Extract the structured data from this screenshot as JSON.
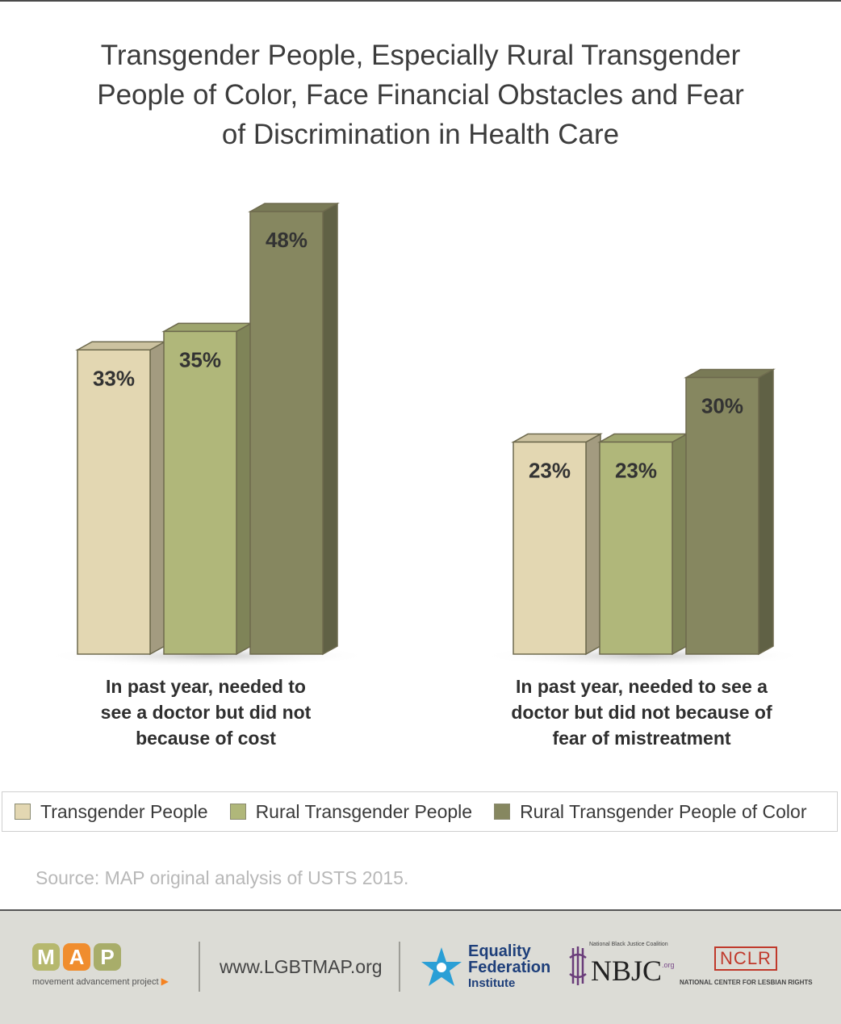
{
  "title": "Transgender People, Especially Rural Transgender People of Color, Face Financial Obstacles and Fear of Discrimination in Health Care",
  "title_lines": [
    "Transgender People, Especially Rural Transgender",
    "People of Color, Face Financial Obstacles and Fear",
    "of Discrimination in Health Care"
  ],
  "chart_data": {
    "type": "bar",
    "categories": [
      "In past year, needed to see a doctor but did not because of cost",
      "In past year, needed to see a doctor but did not because of fear of mistreatment"
    ],
    "category_lines": [
      [
        "In past year, needed to",
        "see a doctor but did not",
        "because of cost"
      ],
      [
        "In past year, needed to see a",
        "doctor but did not because of",
        "fear of mistreatment"
      ]
    ],
    "series": [
      {
        "name": "Transgender People",
        "values": [
          33,
          23
        ],
        "color": "#e3d7b2"
      },
      {
        "name": "Rural Transgender People",
        "values": [
          35,
          23
        ],
        "color": "#b0b77a"
      },
      {
        "name": "Rural Transgender People of Color",
        "values": [
          48,
          30
        ],
        "color": "#868760"
      }
    ],
    "data_labels": [
      [
        "33%",
        "23%"
      ],
      [
        "35%",
        "23%"
      ],
      [
        "48%",
        "30%"
      ]
    ],
    "ylim": [
      0,
      48
    ],
    "grid": false,
    "legend_position": "bottom"
  },
  "legend": {
    "items": [
      {
        "label": "Transgender People",
        "color": "#e3d7b2"
      },
      {
        "label": "Rural Transgender People",
        "color": "#b0b77a"
      },
      {
        "label": "Rural Transgender People of Color",
        "color": "#868760"
      }
    ]
  },
  "source": "Source: MAP original analysis of USTS 2015.",
  "footer": {
    "map_letters": [
      "M",
      "A",
      "P"
    ],
    "map_subtitle": "movement advancement project",
    "url": "www.LGBTMAP.org",
    "efi_lines": [
      "Equality",
      "Federation",
      "Institute"
    ],
    "nbjc_small": "National Black Justice Coalition",
    "nbjc_main": "NBJC",
    "nbjc_org": ".org",
    "nclr_main": "NCLR",
    "nclr_sub": "NATIONAL CENTER FOR LESBIAN RIGHTS"
  }
}
